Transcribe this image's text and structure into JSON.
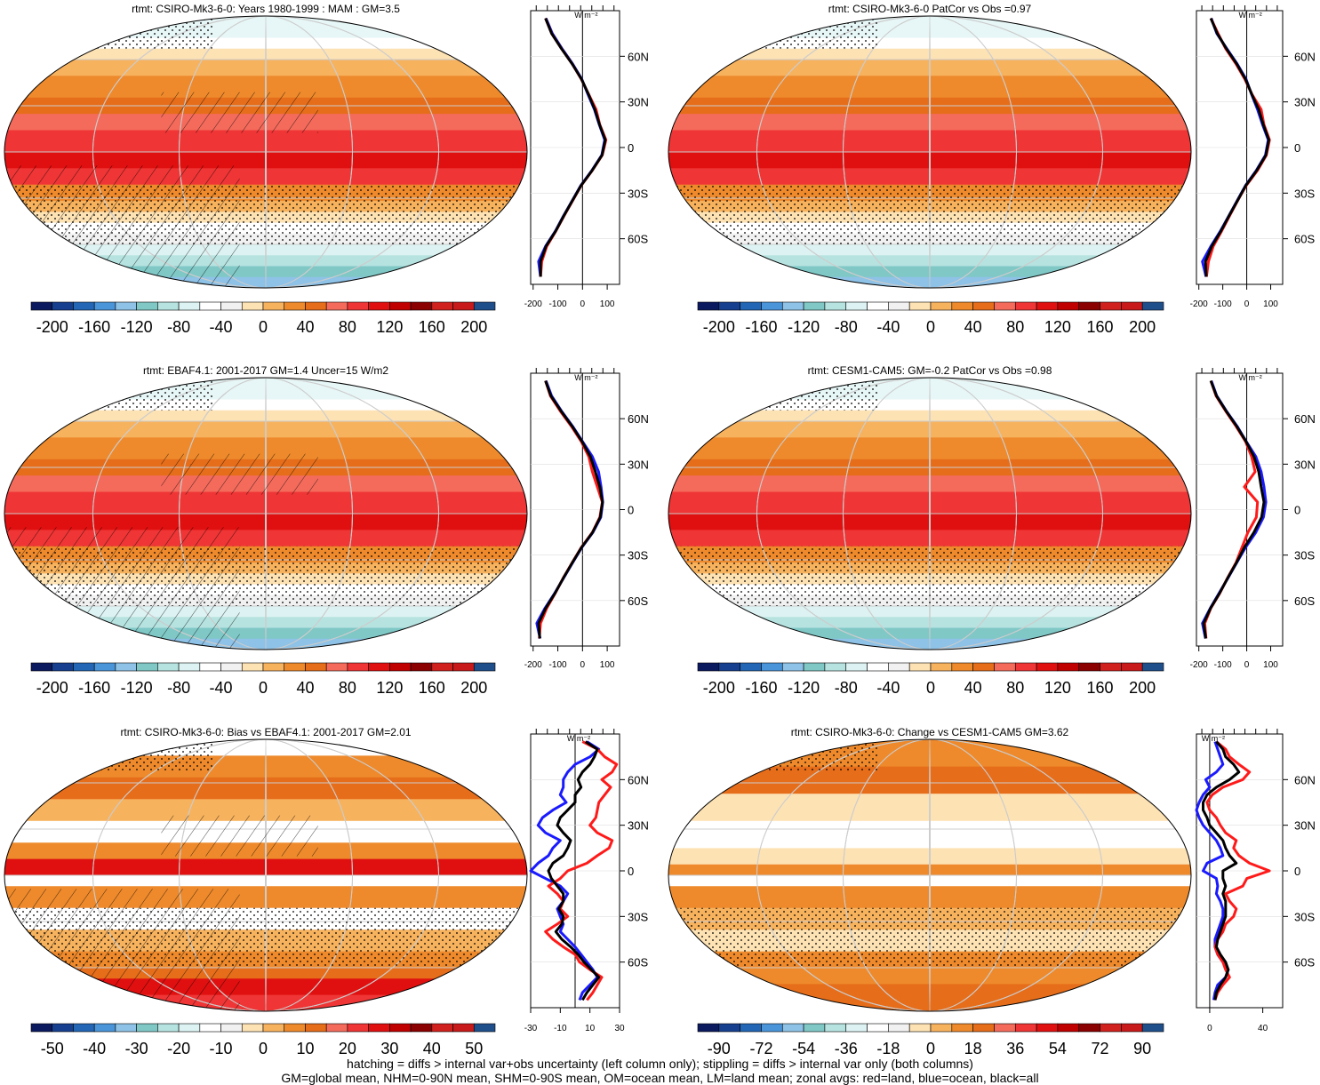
{
  "figure": {
    "footnote_line1": "hatching = diffs > internal var+obs uncertainty (left column only); stippling = diffs > internal var only (both columns)",
    "footnote_line2": "GM=global mean, NHM=0-90N mean, SHM=0-90S mean, OM=ocean mean, LM=land mean; zonal avgs: red=land, blue=ocean, black=all"
  },
  "colors": {
    "land": "#ff1a1a",
    "ocean": "#1a1aff",
    "all": "#000000",
    "map_edge": "#000000",
    "gridline": "#cccccc"
  },
  "palette": [
    "#0b1a5e",
    "#16408f",
    "#2366b5",
    "#4a94d9",
    "#8ec2e6",
    "#7fc8c6",
    "#b6e3e0",
    "#ddf3f3",
    "#ffffff",
    "#f1f1f1",
    "#fde2b4",
    "#f7b25e",
    "#ee8a2c",
    "#e66d1a",
    "#f46b5c",
    "#ef3535",
    "#e01010",
    "#c00000",
    "#8b0000",
    "#d0211e",
    "#c81a1a",
    "#1f4f8b"
  ],
  "chart_data": [
    {
      "type": "map+zonal",
      "panel": "top-left",
      "title": "rtmt: CSIRO-Mk3-6-0: Years 1980-1999 : MAM : GM=3.5",
      "units_label": "W m⁻²",
      "hatching": true,
      "stippling": true,
      "colorbar_ticks": [
        "-200",
        "-160",
        "-120",
        "-80",
        "-40",
        "0",
        "40",
        "80",
        "120",
        "160",
        "200"
      ],
      "colorbar_range": [
        -200,
        200
      ],
      "zonal_xticks": [
        "-200",
        "-100",
        "0",
        "100"
      ],
      "zonal_xlim": [
        -210,
        150
      ],
      "lat_ticks": [
        "60N",
        "30N",
        "0",
        "30S",
        "60S"
      ],
      "lat_values": [
        60,
        30,
        0,
        -30,
        -60
      ],
      "zonal": {
        "lat": [
          85,
          75,
          65,
          55,
          45,
          35,
          25,
          15,
          5,
          -5,
          -15,
          -25,
          -35,
          -45,
          -55,
          -65,
          -75,
          -85
        ],
        "land": [
          -150,
          -125,
          -85,
          -42,
          -5,
          25,
          55,
          70,
          95,
          80,
          40,
          -5,
          -40,
          -75,
          -108,
          -145,
          -165,
          -170
        ],
        "ocean": [
          -148,
          -122,
          -83,
          -40,
          -3,
          22,
          48,
          68,
          90,
          78,
          38,
          -7,
          -42,
          -77,
          -110,
          -150,
          -178,
          -170
        ],
        "all": [
          -150,
          -125,
          -85,
          -42,
          -4,
          24,
          50,
          69,
          92,
          79,
          39,
          -6,
          -41,
          -76,
          -109,
          -148,
          -170,
          -170
        ]
      }
    },
    {
      "type": "map+zonal",
      "panel": "top-right",
      "title": "rtmt: CSIRO-Mk3-6-0 PatCor vs Obs =0.97",
      "units_label": "W m⁻²",
      "hatching": false,
      "stippling": true,
      "colorbar_ticks": [
        "-200",
        "-160",
        "-120",
        "-80",
        "-40",
        "0",
        "40",
        "80",
        "120",
        "160",
        "200"
      ],
      "colorbar_range": [
        -200,
        200
      ],
      "zonal_xticks": [
        "-200",
        "-100",
        "0",
        "100"
      ],
      "zonal_xlim": [
        -210,
        150
      ],
      "lat_ticks": [
        "60N",
        "30N",
        "0",
        "30S",
        "60S"
      ],
      "lat_values": [
        60,
        30,
        0,
        -30,
        -60
      ],
      "zonal": {
        "lat": [
          85,
          75,
          65,
          55,
          45,
          35,
          25,
          15,
          5,
          -5,
          -15,
          -25,
          -35,
          -45,
          -55,
          -65,
          -75,
          -85
        ],
        "land": [
          -150,
          -120,
          -88,
          -45,
          -8,
          22,
          60,
          72,
          95,
          82,
          45,
          -2,
          -38,
          -72,
          -105,
          -140,
          -160,
          -168
        ],
        "ocean": [
          -148,
          -125,
          -83,
          -40,
          -3,
          20,
          45,
          66,
          90,
          78,
          40,
          -5,
          -40,
          -75,
          -110,
          -150,
          -185,
          -170
        ],
        "all": [
          -150,
          -123,
          -85,
          -42,
          -5,
          21,
          50,
          69,
          92,
          80,
          42,
          -4,
          -39,
          -74,
          -108,
          -146,
          -172,
          -169
        ]
      }
    },
    {
      "type": "map+zonal",
      "panel": "middle-left",
      "title": "rtmt: EBAF4.1: 2001-2017 GM=1.4 Uncer=15 W/m2",
      "units_label": "W m⁻²",
      "hatching": true,
      "stippling": true,
      "colorbar_ticks": [
        "-200",
        "-160",
        "-120",
        "-80",
        "-40",
        "0",
        "40",
        "80",
        "120",
        "160",
        "200"
      ],
      "colorbar_range": [
        -200,
        200
      ],
      "zonal_xticks": [
        "-200",
        "-100",
        "0",
        "100"
      ],
      "zonal_xlim": [
        -210,
        150
      ],
      "lat_ticks": [
        "60N",
        "30N",
        "0",
        "30S",
        "60S"
      ],
      "lat_values": [
        60,
        30,
        0,
        -30,
        -60
      ],
      "zonal": {
        "lat": [
          85,
          75,
          65,
          55,
          45,
          35,
          25,
          15,
          5,
          -5,
          -15,
          -25,
          -35,
          -45,
          -55,
          -65,
          -75,
          -85
        ],
        "land": [
          -150,
          -130,
          -90,
          -45,
          -5,
          25,
          40,
          60,
          80,
          70,
          40,
          -5,
          -42,
          -78,
          -110,
          -145,
          -170,
          -175
        ],
        "ocean": [
          -148,
          -125,
          -85,
          -40,
          0,
          40,
          65,
          75,
          82,
          74,
          42,
          -3,
          -40,
          -76,
          -112,
          -152,
          -185,
          -172
        ],
        "all": [
          -150,
          -128,
          -87,
          -42,
          -2,
          32,
          52,
          70,
          81,
          72,
          41,
          -4,
          -41,
          -77,
          -111,
          -149,
          -178,
          -173
        ]
      }
    },
    {
      "type": "map+zonal",
      "panel": "middle-right",
      "title": "rtmt: CESM1-CAM5: GM=-0.2 PatCor vs Obs =0.98",
      "units_label": "W m⁻²",
      "hatching": false,
      "stippling": true,
      "colorbar_ticks": [
        "-200",
        "-160",
        "-120",
        "-80",
        "-40",
        "0",
        "40",
        "80",
        "120",
        "160",
        "200"
      ],
      "colorbar_range": [
        -200,
        200
      ],
      "zonal_xticks": [
        "-200",
        "-100",
        "0",
        "100"
      ],
      "zonal_xlim": [
        -210,
        150
      ],
      "lat_ticks": [
        "60N",
        "30N",
        "0",
        "30S",
        "60S"
      ],
      "lat_values": [
        60,
        30,
        0,
        -30,
        -60
      ],
      "zonal": {
        "lat": [
          85,
          75,
          65,
          55,
          45,
          35,
          25,
          15,
          5,
          -5,
          -15,
          -25,
          -35,
          -45,
          -55,
          -65,
          -75,
          -85
        ],
        "land": [
          -150,
          -128,
          -88,
          -45,
          -5,
          20,
          35,
          -10,
          45,
          40,
          5,
          -20,
          -45,
          -80,
          -112,
          -150,
          -175,
          -170
        ],
        "ocean": [
          -148,
          -125,
          -85,
          -40,
          -2,
          38,
          60,
          72,
          80,
          70,
          38,
          -5,
          -42,
          -78,
          -115,
          -152,
          -185,
          -172
        ],
        "all": [
          -150,
          -126,
          -86,
          -42,
          -3,
          30,
          50,
          60,
          72,
          62,
          30,
          -10,
          -43,
          -79,
          -113,
          -151,
          -180,
          -171
        ]
      }
    },
    {
      "type": "map+zonal",
      "panel": "bottom-left",
      "title": "rtmt: CSIRO-Mk3-6-0: Bias vs EBAF4.1: 2001-2017 GM=2.01",
      "units_label": "W m⁻²",
      "hatching": true,
      "stippling": true,
      "colorbar_ticks": [
        "-50",
        "-40",
        "-30",
        "-20",
        "-10",
        "0",
        "10",
        "20",
        "30",
        "40",
        "50"
      ],
      "colorbar_range": [
        -50,
        50
      ],
      "zonal_xticks": [
        "-30",
        "-10",
        "10",
        "30"
      ],
      "zonal_xlim": [
        -30,
        30
      ],
      "lat_ticks": [
        "60N",
        "30N",
        "0",
        "30S",
        "60S"
      ],
      "lat_values": [
        60,
        30,
        0,
        -30,
        -60
      ],
      "zonal": {
        "lat": [
          85,
          80,
          75,
          70,
          65,
          60,
          55,
          50,
          45,
          40,
          35,
          30,
          25,
          20,
          15,
          10,
          5,
          0,
          -5,
          -10,
          -15,
          -20,
          -25,
          -30,
          -35,
          -40,
          -45,
          -50,
          -55,
          -60,
          -65,
          -70,
          -75,
          -80,
          -85
        ],
        "land": [
          5,
          15,
          20,
          28,
          25,
          18,
          24,
          20,
          16,
          15,
          14,
          10,
          15,
          25,
          23,
          15,
          8,
          -5,
          -10,
          -18,
          -12,
          -8,
          -10,
          -5,
          -12,
          -20,
          -15,
          -8,
          0,
          3,
          10,
          18,
          15,
          12,
          8
        ],
        "ocean": [
          8,
          16,
          10,
          0,
          -5,
          -8,
          -8,
          -10,
          -6,
          -15,
          -22,
          -25,
          -20,
          -10,
          -15,
          -18,
          -25,
          -30,
          -20,
          -10,
          -5,
          -8,
          -12,
          -10,
          -8,
          -10,
          -5,
          0,
          4,
          8,
          12,
          15,
          10,
          5,
          3
        ],
        "all": [
          7,
          15,
          13,
          10,
          5,
          2,
          4,
          0,
          0,
          -5,
          -10,
          -12,
          -8,
          -3,
          -5,
          -8,
          -15,
          -18,
          -16,
          -12,
          -8,
          -8,
          -11,
          -8,
          -9,
          -13,
          -9,
          -3,
          2,
          6,
          11,
          16,
          12,
          8,
          5
        ]
      }
    },
    {
      "type": "map+zonal",
      "panel": "bottom-right",
      "title": "rtmt: CSIRO-Mk3-6-0: Change vs CESM1-CAM5 GM=3.62",
      "units_label": "W m⁻²",
      "hatching": false,
      "stippling": true,
      "colorbar_ticks": [
        "-90",
        "-72",
        "-54",
        "-36",
        "-18",
        "0",
        "18",
        "36",
        "54",
        "72",
        "90"
      ],
      "colorbar_range": [
        -90,
        90
      ],
      "zonal_xticks": [
        "0",
        "40"
      ],
      "zonal_xlim": [
        -10,
        55
      ],
      "lat_ticks": [
        "60N",
        "30N",
        "0",
        "30S",
        "60S"
      ],
      "lat_values": [
        60,
        30,
        0,
        -30,
        -60
      ],
      "zonal": {
        "lat": [
          85,
          80,
          75,
          70,
          65,
          60,
          55,
          50,
          45,
          40,
          35,
          30,
          25,
          20,
          15,
          10,
          5,
          0,
          -5,
          -10,
          -15,
          -20,
          -25,
          -30,
          -35,
          -40,
          -45,
          -50,
          -55,
          -60,
          -65,
          -70,
          -75,
          -80,
          -85
        ],
        "land": [
          5,
          12,
          15,
          22,
          30,
          25,
          10,
          2,
          -2,
          0,
          5,
          8,
          12,
          20,
          18,
          22,
          30,
          45,
          28,
          25,
          12,
          15,
          20,
          18,
          12,
          10,
          6,
          4,
          6,
          10,
          12,
          15,
          10,
          6,
          4
        ],
        "ocean": [
          4,
          6,
          8,
          10,
          5,
          -3,
          0,
          -5,
          -8,
          -10,
          -8,
          -5,
          0,
          5,
          8,
          10,
          -2,
          -5,
          5,
          6,
          5,
          8,
          10,
          10,
          8,
          6,
          4,
          4,
          6,
          10,
          14,
          12,
          6,
          4,
          3
        ],
        "all": [
          5,
          10,
          12,
          18,
          22,
          15,
          5,
          -2,
          -5,
          -5,
          -2,
          0,
          5,
          10,
          12,
          15,
          20,
          10,
          10,
          12,
          10,
          12,
          12,
          12,
          10,
          8,
          6,
          5,
          8,
          12,
          14,
          12,
          8,
          5,
          4
        ]
      }
    }
  ]
}
